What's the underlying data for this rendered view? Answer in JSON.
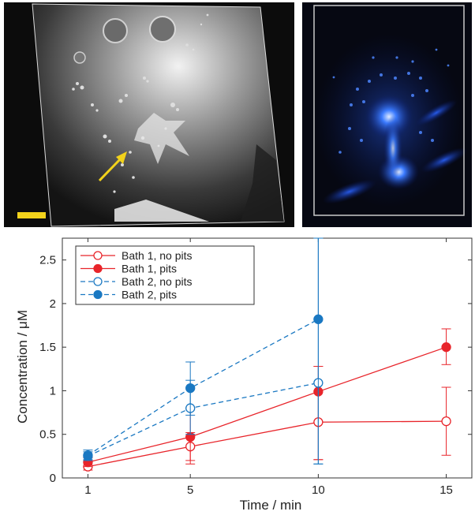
{
  "figure": {
    "colors": {
      "bath1": "#e8242a",
      "bath2": "#1a78c2",
      "scale_bar": "#f2d21b",
      "arrow": "#f2d21b",
      "fluorescence": "#2d6cff"
    }
  },
  "chart_data": {
    "type": "line",
    "xlabel": "Time / min",
    "ylabel": "Concentration / μM",
    "xlim": [
      0,
      16
    ],
    "ylim": [
      0,
      2.75
    ],
    "xticks": [
      1,
      5,
      10,
      15
    ],
    "yticks": [
      0,
      0.5,
      1,
      1.5,
      2,
      2.5
    ],
    "ytick_labels": [
      "0",
      "0.5",
      "1",
      "1.5",
      "2",
      "2.5"
    ],
    "grid": false,
    "legend_position": "top-left",
    "series": [
      {
        "name": "Bath 1, no pits",
        "color": "#e8242a",
        "line": "solid",
        "marker": "open-circle",
        "x": [
          1,
          5,
          10,
          15
        ],
        "y": [
          0.13,
          0.36,
          0.64,
          0.65
        ],
        "err_low": [
          0.09,
          0.2,
          0.21,
          0.26
        ],
        "err_high": [
          0.2,
          0.52,
          1.28,
          1.04
        ]
      },
      {
        "name": "Bath 1, pits",
        "color": "#e8242a",
        "line": "solid",
        "marker": "filled-circle",
        "x": [
          1,
          5,
          10,
          15
        ],
        "y": [
          0.18,
          0.47,
          0.99,
          1.5
        ],
        "err_low": [
          0.13,
          0.16,
          0.21,
          1.3
        ],
        "err_high": [
          0.23,
          0.8,
          1.28,
          1.71
        ]
      },
      {
        "name": "Bath 2, no pits",
        "color": "#1a78c2",
        "line": "dashed",
        "marker": "open-circle",
        "x": [
          1,
          5,
          10
        ],
        "y": [
          0.25,
          0.8,
          1.09
        ],
        "err_low": [
          0.2,
          0.5,
          0.16
        ],
        "err_high": [
          0.3,
          1.12,
          2.75
        ]
      },
      {
        "name": "Bath 2, pits",
        "color": "#1a78c2",
        "line": "dashed",
        "marker": "filled-circle",
        "x": [
          1,
          5,
          10
        ],
        "y": [
          0.26,
          1.03,
          1.82
        ],
        "err_low": [
          0.21,
          0.72,
          0.16
        ],
        "err_high": [
          0.32,
          1.33,
          2.75
        ]
      }
    ]
  }
}
